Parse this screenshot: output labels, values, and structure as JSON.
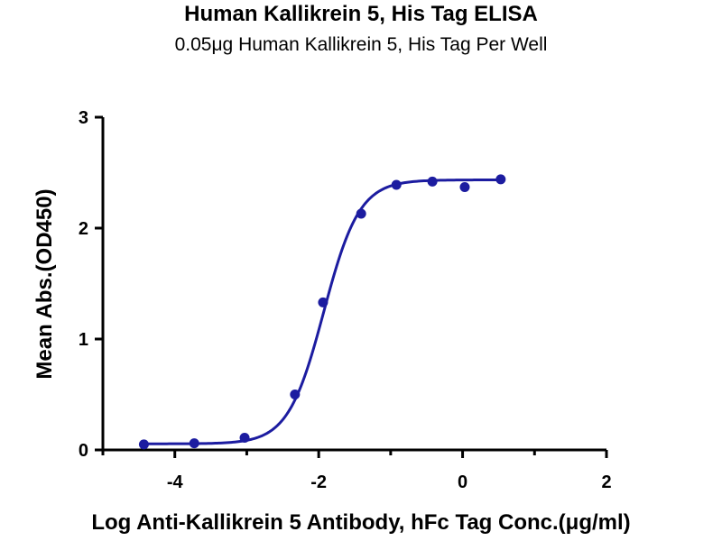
{
  "chart_data": {
    "type": "line",
    "title": "Human Kallikrein 5, His Tag ELISA",
    "subtitle": "0.05μg Human Kallikrein 5, His Tag Per Well",
    "xlabel": "Log Anti-Kallikrein 5 Antibody, hFc Tag Conc.(μg/ml)",
    "ylabel": "Mean Abs.(OD450)",
    "xlim": [
      -5,
      2
    ],
    "ylim": [
      0,
      3
    ],
    "x_ticks": [
      -4,
      -2,
      0,
      2
    ],
    "y_ticks": [
      0,
      1,
      2,
      3
    ],
    "grid": false,
    "legend": "none",
    "series_color": "#1c1ca0",
    "series": [
      {
        "x": [
          -4.43,
          -3.73,
          -3.03,
          -2.33,
          -1.94,
          -1.41,
          -0.92,
          -0.42,
          0.03,
          0.53
        ],
        "y": [
          0.05,
          0.06,
          0.11,
          0.5,
          1.33,
          2.13,
          2.39,
          2.42,
          2.37,
          2.44
        ]
      }
    ],
    "fit": {
      "model": "4PL",
      "bottom": 0.055,
      "top": 2.435,
      "logEC50": -1.93,
      "hill": 1.75
    }
  }
}
